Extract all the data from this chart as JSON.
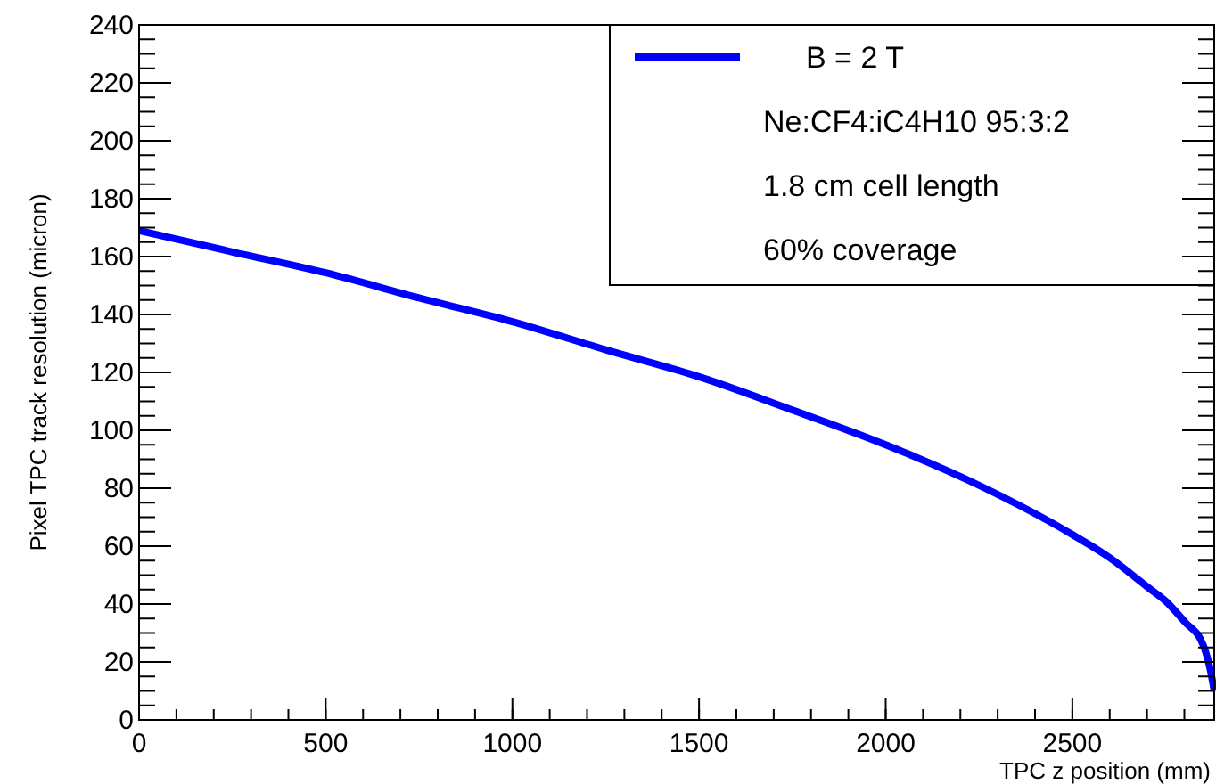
{
  "chart_data": {
    "type": "line",
    "xlabel": "TPC z position (mm)",
    "ylabel": "Pixel TPC track resolution (micron)",
    "x": [
      0,
      250,
      500,
      750,
      1000,
      1250,
      1500,
      1750,
      2000,
      2250,
      2500,
      2600,
      2700,
      2750,
      2800,
      2850,
      2870,
      2880
    ],
    "series": [
      {
        "name": "B = 2 T",
        "color": "#0000ff",
        "values": [
          169,
          161.6,
          154.4,
          145.7,
          137.5,
          127.8,
          118.5,
          107,
          95,
          81,
          64,
          56,
          46,
          41,
          34,
          26,
          17,
          10
        ]
      }
    ],
    "annotations": [
      "Ne:CF4:iC4H10 95:3:2",
      "1.8 cm cell length",
      "60% coverage"
    ],
    "xlim": [
      0,
      2880
    ],
    "xticks": [
      0,
      500,
      1000,
      1500,
      2000,
      2500
    ],
    "ylim": [
      0,
      240
    ],
    "yticks": [
      0,
      20,
      40,
      60,
      80,
      100,
      120,
      140,
      160,
      180,
      200,
      220,
      240
    ],
    "legend": "top right",
    "grid": false,
    "marker": "none",
    "line_style": "solid"
  }
}
